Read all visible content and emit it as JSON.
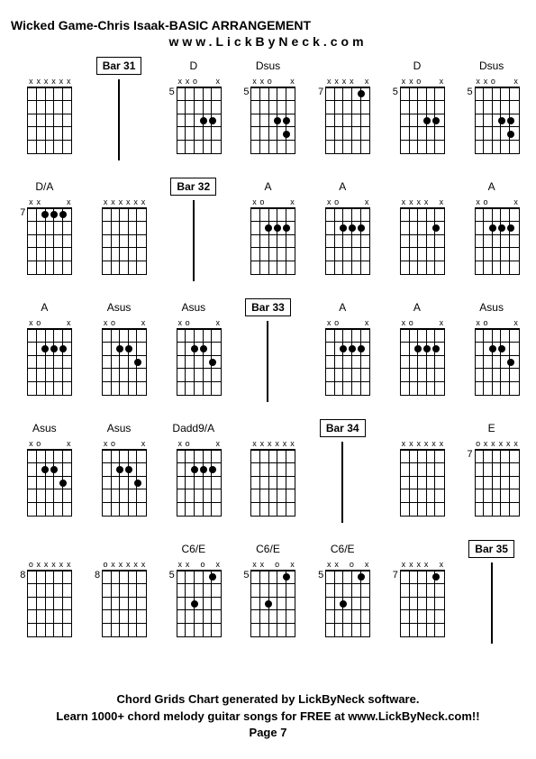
{
  "title": "Wicked Game-Chris Isaak-BASIC ARRANGEMENT",
  "subtitle": "www.LickByNeck.com",
  "footer_line1": "Chord Grids Chart generated by LickByNeck software.",
  "footer_line2": "Learn 1000+ chord melody guitar songs for FREE at www.LickByNeck.com!!",
  "footer_line3": "Page 7",
  "cells": [
    {
      "type": "chord",
      "label": "",
      "fret": "",
      "markers": [
        "x",
        "x",
        "x",
        "x",
        "x",
        "x"
      ],
      "dots": []
    },
    {
      "type": "bar",
      "label": "Bar 31"
    },
    {
      "type": "chord",
      "label": "D",
      "fret": "5",
      "markers": [
        "x",
        "x",
        "o",
        "",
        "",
        "x"
      ],
      "dots": [
        [
          3,
          3
        ],
        [
          4,
          3
        ]
      ]
    },
    {
      "type": "chord",
      "label": "Dsus",
      "fret": "5",
      "markers": [
        "x",
        "x",
        "o",
        "",
        "",
        "x"
      ],
      "dots": [
        [
          3,
          3
        ],
        [
          4,
          3
        ],
        [
          4,
          4
        ]
      ]
    },
    {
      "type": "chord",
      "label": "",
      "fret": "7",
      "markers": [
        "x",
        "x",
        "x",
        "x",
        "",
        "x"
      ],
      "dots": [
        [
          4,
          1
        ]
      ]
    },
    {
      "type": "chord",
      "label": "D",
      "fret": "5",
      "markers": [
        "x",
        "x",
        "o",
        "",
        "",
        "x"
      ],
      "dots": [
        [
          3,
          3
        ],
        [
          4,
          3
        ]
      ]
    },
    {
      "type": "chord",
      "label": "Dsus",
      "fret": "5",
      "markers": [
        "x",
        "x",
        "o",
        "",
        "",
        "x"
      ],
      "dots": [
        [
          3,
          3
        ],
        [
          4,
          3
        ],
        [
          4,
          4
        ]
      ]
    },
    {
      "type": "chord",
      "label": "D/A",
      "fret": "7",
      "markers": [
        "x",
        "x",
        "",
        "",
        "",
        "x"
      ],
      "dots": [
        [
          2,
          1
        ],
        [
          3,
          1
        ],
        [
          4,
          1
        ]
      ]
    },
    {
      "type": "chord",
      "label": "",
      "fret": "",
      "markers": [
        "x",
        "x",
        "x",
        "x",
        "x",
        "x"
      ],
      "dots": []
    },
    {
      "type": "bar",
      "label": "Bar 32"
    },
    {
      "type": "chord",
      "label": "A",
      "fret": "",
      "markers": [
        "x",
        "o",
        "",
        "",
        "",
        "x"
      ],
      "dots": [
        [
          2,
          2
        ],
        [
          3,
          2
        ],
        [
          4,
          2
        ]
      ]
    },
    {
      "type": "chord",
      "label": "A",
      "fret": "",
      "markers": [
        "x",
        "o",
        "",
        "",
        "",
        "x"
      ],
      "dots": [
        [
          2,
          2
        ],
        [
          3,
          2
        ],
        [
          4,
          2
        ]
      ]
    },
    {
      "type": "chord",
      "label": "",
      "fret": "",
      "markers": [
        "x",
        "x",
        "x",
        "x",
        "",
        "x"
      ],
      "dots": [
        [
          4,
          2
        ]
      ]
    },
    {
      "type": "chord",
      "label": "A",
      "fret": "",
      "markers": [
        "x",
        "o",
        "",
        "",
        "",
        "x"
      ],
      "dots": [
        [
          2,
          2
        ],
        [
          3,
          2
        ],
        [
          4,
          2
        ]
      ]
    },
    {
      "type": "chord",
      "label": "A",
      "fret": "",
      "markers": [
        "x",
        "o",
        "",
        "",
        "",
        "x"
      ],
      "dots": [
        [
          2,
          2
        ],
        [
          3,
          2
        ],
        [
          4,
          2
        ]
      ]
    },
    {
      "type": "chord",
      "label": "Asus",
      "fret": "",
      "markers": [
        "x",
        "o",
        "",
        "",
        "",
        "x"
      ],
      "dots": [
        [
          2,
          2
        ],
        [
          3,
          2
        ],
        [
          4,
          3
        ]
      ]
    },
    {
      "type": "chord",
      "label": "Asus",
      "fret": "",
      "markers": [
        "x",
        "o",
        "",
        "",
        "",
        "x"
      ],
      "dots": [
        [
          2,
          2
        ],
        [
          3,
          2
        ],
        [
          4,
          3
        ]
      ]
    },
    {
      "type": "bar",
      "label": "Bar 33"
    },
    {
      "type": "chord",
      "label": "A",
      "fret": "",
      "markers": [
        "x",
        "o",
        "",
        "",
        "",
        "x"
      ],
      "dots": [
        [
          2,
          2
        ],
        [
          3,
          2
        ],
        [
          4,
          2
        ]
      ]
    },
    {
      "type": "chord",
      "label": "A",
      "fret": "",
      "markers": [
        "x",
        "o",
        "",
        "",
        "",
        "x"
      ],
      "dots": [
        [
          2,
          2
        ],
        [
          3,
          2
        ],
        [
          4,
          2
        ]
      ]
    },
    {
      "type": "chord",
      "label": "Asus",
      "fret": "",
      "markers": [
        "x",
        "o",
        "",
        "",
        "",
        "x"
      ],
      "dots": [
        [
          2,
          2
        ],
        [
          3,
          2
        ],
        [
          4,
          3
        ]
      ]
    },
    {
      "type": "chord",
      "label": "Asus",
      "fret": "",
      "markers": [
        "x",
        "o",
        "",
        "",
        "",
        "x"
      ],
      "dots": [
        [
          2,
          2
        ],
        [
          3,
          2
        ],
        [
          4,
          3
        ]
      ]
    },
    {
      "type": "chord",
      "label": "Asus",
      "fret": "",
      "markers": [
        "x",
        "o",
        "",
        "",
        "",
        "x"
      ],
      "dots": [
        [
          2,
          2
        ],
        [
          3,
          2
        ],
        [
          4,
          3
        ]
      ]
    },
    {
      "type": "chord",
      "label": "Dadd9/A",
      "fret": "",
      "markers": [
        "x",
        "o",
        "",
        "",
        "",
        "x"
      ],
      "dots": [
        [
          2,
          2
        ],
        [
          3,
          2
        ],
        [
          4,
          2
        ]
      ]
    },
    {
      "type": "chord",
      "label": "",
      "fret": "",
      "markers": [
        "x",
        "x",
        "x",
        "x",
        "x",
        "x"
      ],
      "dots": []
    },
    {
      "type": "bar",
      "label": "Bar 34"
    },
    {
      "type": "chord",
      "label": "",
      "fret": "",
      "markers": [
        "x",
        "x",
        "x",
        "x",
        "x",
        "x"
      ],
      "dots": []
    },
    {
      "type": "chord",
      "label": "E",
      "fret": "7",
      "markers": [
        "o",
        "x",
        "x",
        "x",
        "x",
        "x"
      ],
      "dots": []
    },
    {
      "type": "chord",
      "label": "",
      "fret": "8",
      "markers": [
        "o",
        "x",
        "x",
        "x",
        "x",
        "x"
      ],
      "dots": []
    },
    {
      "type": "chord",
      "label": "",
      "fret": "8",
      "markers": [
        "o",
        "x",
        "x",
        "x",
        "x",
        "x"
      ],
      "dots": []
    },
    {
      "type": "chord",
      "label": "C6/E",
      "fret": "5",
      "markers": [
        "x",
        "x",
        "",
        "o",
        "",
        "x"
      ],
      "dots": [
        [
          2,
          3
        ],
        [
          4,
          1
        ]
      ]
    },
    {
      "type": "chord",
      "label": "C6/E",
      "fret": "5",
      "markers": [
        "x",
        "x",
        "",
        "o",
        "",
        "x"
      ],
      "dots": [
        [
          2,
          3
        ],
        [
          4,
          1
        ]
      ]
    },
    {
      "type": "chord",
      "label": "C6/E",
      "fret": "5",
      "markers": [
        "x",
        "x",
        "",
        "o",
        "",
        "x"
      ],
      "dots": [
        [
          2,
          3
        ],
        [
          4,
          1
        ]
      ]
    },
    {
      "type": "chord",
      "label": "",
      "fret": "7",
      "markers": [
        "x",
        "x",
        "x",
        "x",
        "",
        "x"
      ],
      "dots": [
        [
          4,
          1
        ]
      ]
    },
    {
      "type": "bar",
      "label": "Bar 35"
    }
  ]
}
